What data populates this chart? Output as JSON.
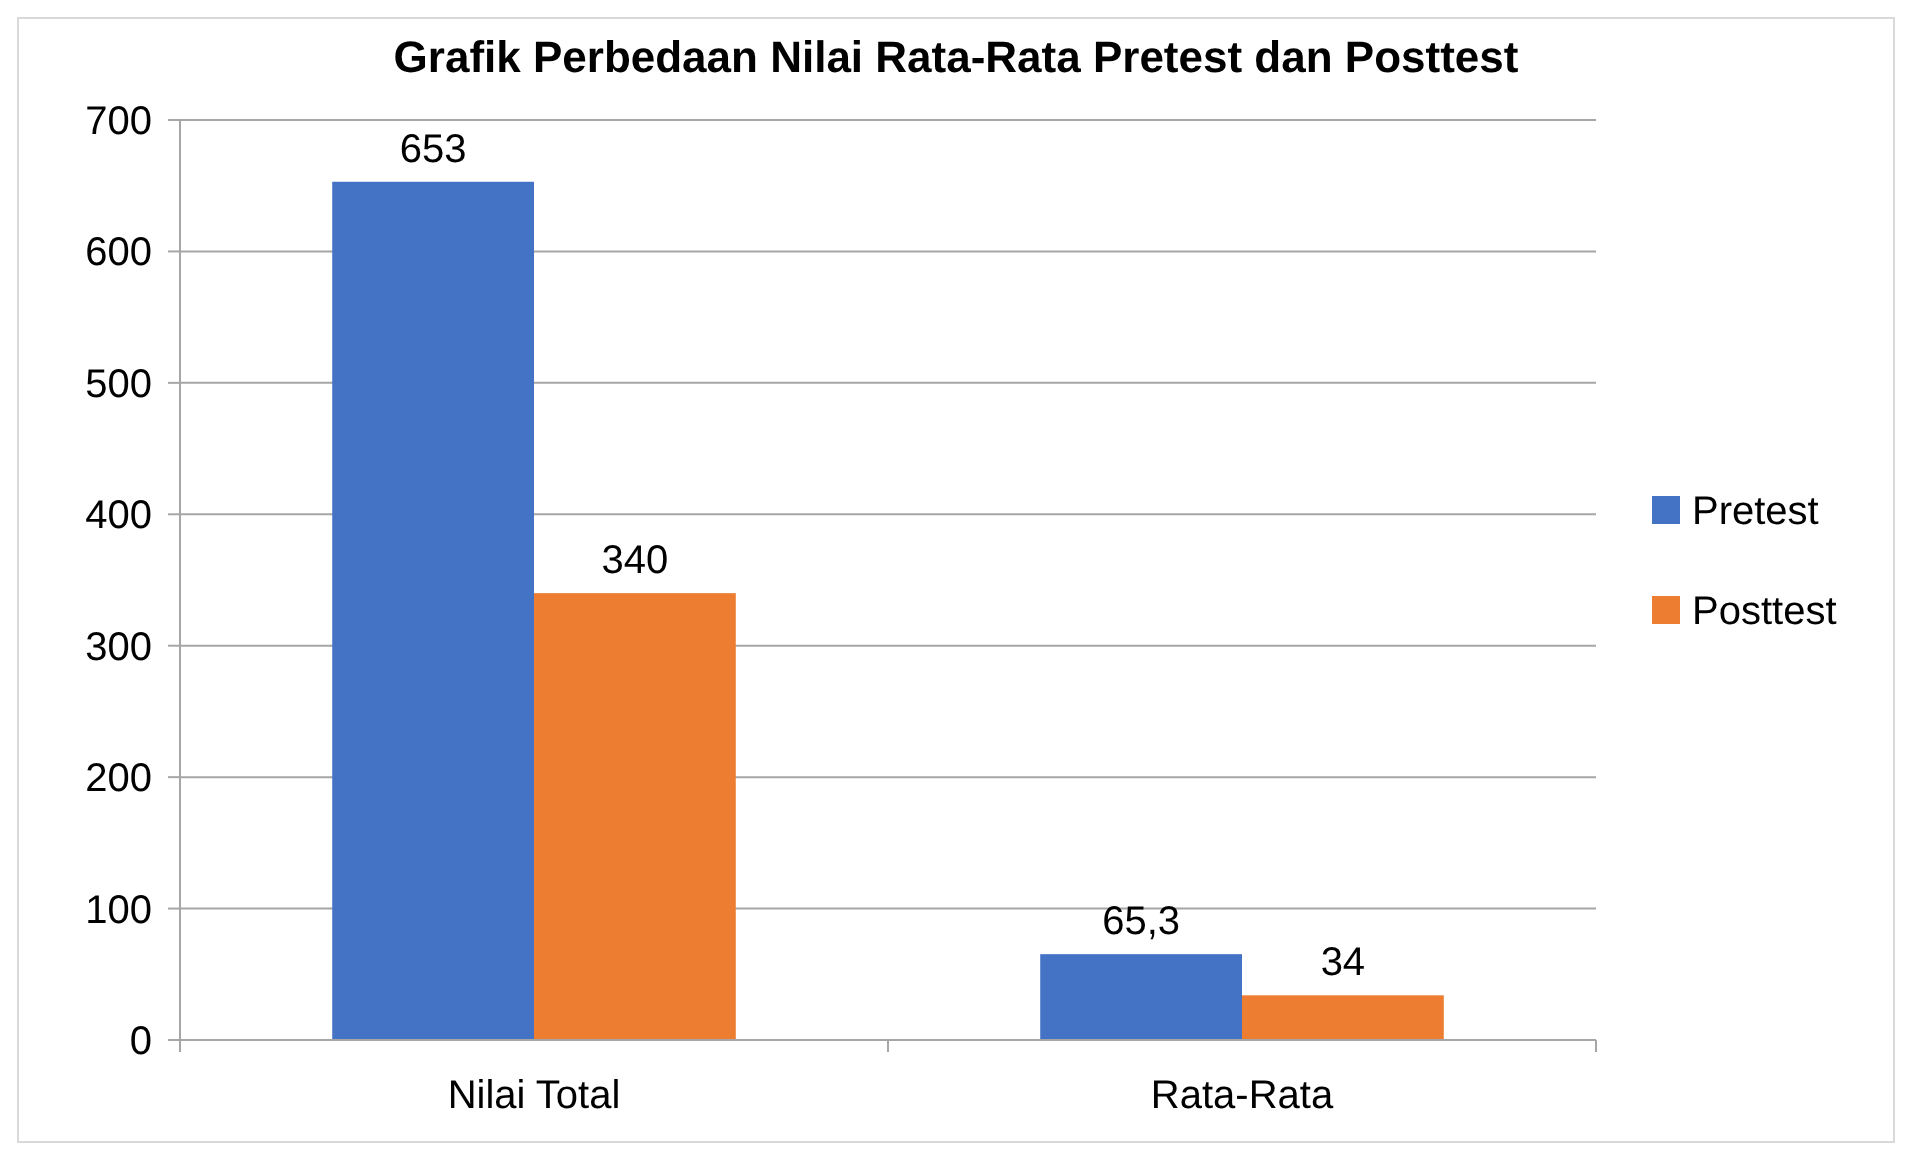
{
  "chart_data": {
    "type": "bar",
    "title": "Grafik Perbedaan Nilai Rata-Rata Pretest dan Posttest",
    "categories": [
      "Nilai Total",
      "Rata-Rata"
    ],
    "series": [
      {
        "name": "Pretest",
        "color": "#4472c4",
        "values": [
          653,
          65.3
        ]
      },
      {
        "name": "Posttest",
        "color": "#ed7d31",
        "values": [
          340,
          34
        ]
      }
    ],
    "value_labels": [
      [
        "653",
        "65,3"
      ],
      [
        "340",
        "34"
      ]
    ],
    "ylim": [
      0,
      700
    ],
    "yticks": [
      0,
      100,
      200,
      300,
      400,
      500,
      600,
      700
    ],
    "grid": "y",
    "legend": "right"
  }
}
